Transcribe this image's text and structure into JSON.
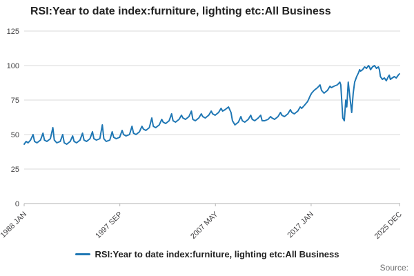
{
  "title": "RSI:Year to date index:furniture, lighting etc:All Business",
  "legend": {
    "label": "RSI:Year to date index:furniture, lighting etc:All Business"
  },
  "source_label": "Source:",
  "colors": {
    "line": "#1f77b4",
    "grid": "#d9d9d9",
    "axis": "#b3b3b3",
    "tick_text": "#414042",
    "title_text": "#222222"
  },
  "chart_data": {
    "type": "line",
    "title": "RSI:Year to date index:furniture, lighting etc:All Business",
    "xlabel": "",
    "ylabel": "",
    "xlim": [
      1988,
      2026
    ],
    "ylim": [
      0,
      125
    ],
    "grid": true,
    "legend_position": "bottom",
    "y_ticks": [
      0,
      25,
      50,
      75,
      100,
      125
    ],
    "x_ticks": [
      {
        "x": 1988.0,
        "label": "1988 JAN"
      },
      {
        "x": 1997.67,
        "label": "1997 SEP"
      },
      {
        "x": 2007.33,
        "label": "2007 MAY"
      },
      {
        "x": 2017.0,
        "label": "2017 JAN"
      },
      {
        "x": 2025.92,
        "label": "2025 DEC"
      }
    ],
    "series": [
      {
        "name": "RSI:Year to date index:furniture, lighting etc:All Business",
        "points": [
          [
            1988.0,
            43
          ],
          [
            1988.2,
            45
          ],
          [
            1988.4,
            44
          ],
          [
            1988.65,
            46
          ],
          [
            1988.9,
            50
          ],
          [
            1989.05,
            45
          ],
          [
            1989.3,
            44
          ],
          [
            1989.65,
            46
          ],
          [
            1989.9,
            51
          ],
          [
            1990.05,
            46
          ],
          [
            1990.3,
            45
          ],
          [
            1990.65,
            47
          ],
          [
            1990.9,
            55
          ],
          [
            1991.05,
            46
          ],
          [
            1991.3,
            44
          ],
          [
            1991.65,
            45
          ],
          [
            1991.9,
            50
          ],
          [
            1992.05,
            44
          ],
          [
            1992.3,
            43
          ],
          [
            1992.65,
            45
          ],
          [
            1992.9,
            49
          ],
          [
            1993.05,
            45
          ],
          [
            1993.3,
            44
          ],
          [
            1993.65,
            46
          ],
          [
            1993.9,
            51
          ],
          [
            1994.05,
            46
          ],
          [
            1994.3,
            45
          ],
          [
            1994.65,
            47
          ],
          [
            1994.9,
            52
          ],
          [
            1995.05,
            47
          ],
          [
            1995.3,
            46
          ],
          [
            1995.65,
            47
          ],
          [
            1995.9,
            57
          ],
          [
            1996.05,
            47
          ],
          [
            1996.3,
            45
          ],
          [
            1996.65,
            46
          ],
          [
            1996.9,
            52
          ],
          [
            1997.05,
            48
          ],
          [
            1997.3,
            47
          ],
          [
            1997.65,
            48
          ],
          [
            1997.9,
            53
          ],
          [
            1998.05,
            50
          ],
          [
            1998.3,
            49
          ],
          [
            1998.65,
            50
          ],
          [
            1998.9,
            56
          ],
          [
            1999.05,
            51
          ],
          [
            1999.3,
            50
          ],
          [
            1999.65,
            52
          ],
          [
            1999.9,
            56
          ],
          [
            2000.05,
            54
          ],
          [
            2000.3,
            53
          ],
          [
            2000.65,
            55
          ],
          [
            2000.9,
            62
          ],
          [
            2001.05,
            56
          ],
          [
            2001.3,
            55
          ],
          [
            2001.65,
            57
          ],
          [
            2001.9,
            61
          ],
          [
            2002.05,
            59
          ],
          [
            2002.3,
            58
          ],
          [
            2002.65,
            60
          ],
          [
            2002.9,
            65
          ],
          [
            2003.05,
            60
          ],
          [
            2003.3,
            59
          ],
          [
            2003.65,
            61
          ],
          [
            2003.9,
            64
          ],
          [
            2004.05,
            62
          ],
          [
            2004.3,
            61
          ],
          [
            2004.65,
            63
          ],
          [
            2004.9,
            67
          ],
          [
            2005.05,
            61
          ],
          [
            2005.3,
            60
          ],
          [
            2005.65,
            62
          ],
          [
            2005.9,
            65
          ],
          [
            2006.05,
            63
          ],
          [
            2006.3,
            62
          ],
          [
            2006.65,
            64
          ],
          [
            2006.9,
            67
          ],
          [
            2007.05,
            65
          ],
          [
            2007.3,
            64
          ],
          [
            2007.65,
            66
          ],
          [
            2007.9,
            69
          ],
          [
            2008.05,
            67
          ],
          [
            2008.3,
            68
          ],
          [
            2008.65,
            70
          ],
          [
            2008.9,
            66
          ],
          [
            2009.05,
            60
          ],
          [
            2009.3,
            57
          ],
          [
            2009.65,
            59
          ],
          [
            2009.9,
            63
          ],
          [
            2010.05,
            60
          ],
          [
            2010.3,
            59
          ],
          [
            2010.65,
            61
          ],
          [
            2010.9,
            64
          ],
          [
            2011.05,
            61
          ],
          [
            2011.3,
            60
          ],
          [
            2011.65,
            62
          ],
          [
            2011.9,
            64
          ],
          [
            2012.05,
            60
          ],
          [
            2012.3,
            60
          ],
          [
            2012.65,
            61
          ],
          [
            2012.9,
            63
          ],
          [
            2013.05,
            62
          ],
          [
            2013.3,
            61
          ],
          [
            2013.65,
            63
          ],
          [
            2013.9,
            66
          ],
          [
            2014.05,
            64
          ],
          [
            2014.3,
            63
          ],
          [
            2014.65,
            65
          ],
          [
            2014.9,
            68
          ],
          [
            2015.05,
            66
          ],
          [
            2015.3,
            65
          ],
          [
            2015.65,
            67
          ],
          [
            2015.9,
            70
          ],
          [
            2016.05,
            69
          ],
          [
            2016.3,
            71
          ],
          [
            2016.65,
            74
          ],
          [
            2016.9,
            78
          ],
          [
            2017.05,
            80
          ],
          [
            2017.3,
            82
          ],
          [
            2017.65,
            84
          ],
          [
            2017.9,
            86
          ],
          [
            2018.05,
            82
          ],
          [
            2018.3,
            80
          ],
          [
            2018.65,
            82
          ],
          [
            2018.9,
            85
          ],
          [
            2019.05,
            84
          ],
          [
            2019.3,
            85
          ],
          [
            2019.65,
            86
          ],
          [
            2019.9,
            88
          ],
          [
            2020.0,
            86
          ],
          [
            2020.2,
            62
          ],
          [
            2020.35,
            60
          ],
          [
            2020.5,
            75
          ],
          [
            2020.6,
            70
          ],
          [
            2020.75,
            88
          ],
          [
            2020.9,
            78
          ],
          [
            2021.0,
            72
          ],
          [
            2021.1,
            66
          ],
          [
            2021.25,
            80
          ],
          [
            2021.4,
            88
          ],
          [
            2021.6,
            92
          ],
          [
            2021.8,
            95
          ],
          [
            2021.9,
            97
          ],
          [
            2022.0,
            96
          ],
          [
            2022.2,
            97
          ],
          [
            2022.4,
            99
          ],
          [
            2022.6,
            98
          ],
          [
            2022.8,
            100
          ],
          [
            2022.9,
            99
          ],
          [
            2023.0,
            97
          ],
          [
            2023.2,
            99
          ],
          [
            2023.4,
            100
          ],
          [
            2023.6,
            98
          ],
          [
            2023.8,
            99
          ],
          [
            2023.9,
            97
          ],
          [
            2024.0,
            92
          ],
          [
            2024.2,
            90
          ],
          [
            2024.4,
            91
          ],
          [
            2024.6,
            89
          ],
          [
            2024.8,
            92
          ],
          [
            2024.9,
            93
          ],
          [
            2025.0,
            90
          ],
          [
            2025.2,
            91
          ],
          [
            2025.4,
            92
          ],
          [
            2025.6,
            91
          ],
          [
            2025.8,
            93
          ],
          [
            2025.92,
            94
          ]
        ]
      }
    ]
  }
}
